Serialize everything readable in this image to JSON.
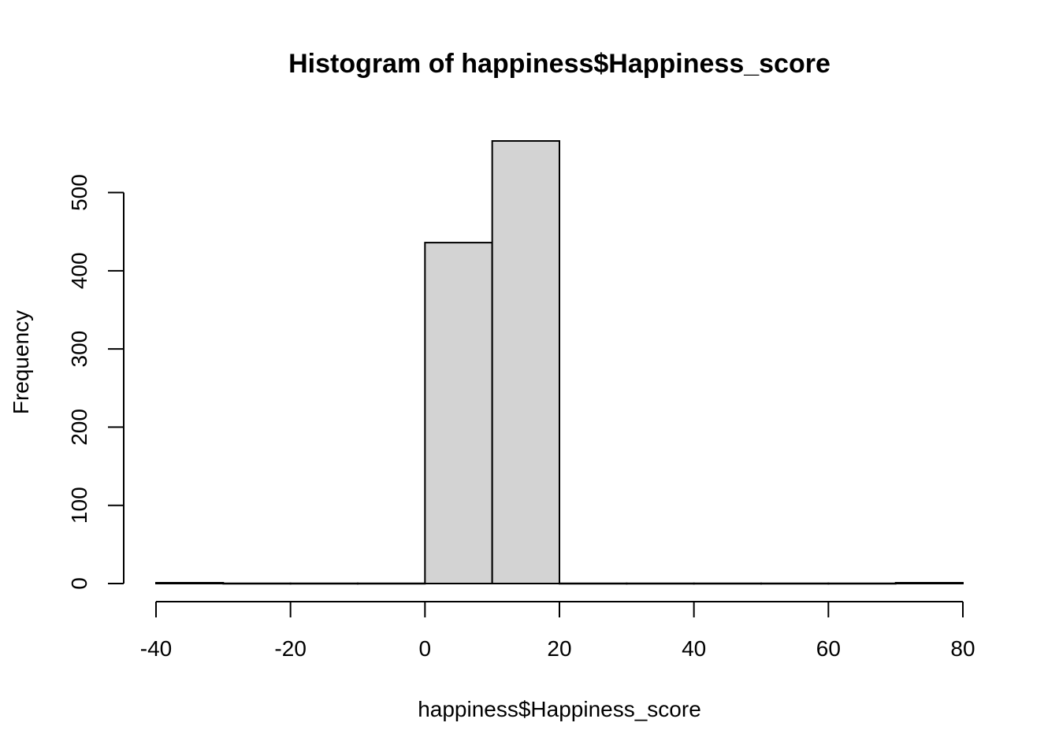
{
  "chart_data": {
    "type": "bar",
    "title": "Histogram of happiness$Happiness_score",
    "xlabel": "happiness$Happiness_score",
    "ylabel": "Frequency",
    "bins": [
      {
        "start": -40,
        "end": -30,
        "count": 1
      },
      {
        "start": -30,
        "end": -20,
        "count": 0
      },
      {
        "start": -20,
        "end": -10,
        "count": 0
      },
      {
        "start": -10,
        "end": 0,
        "count": 0
      },
      {
        "start": 0,
        "end": 10,
        "count": 436
      },
      {
        "start": 10,
        "end": 20,
        "count": 566
      },
      {
        "start": 20,
        "end": 30,
        "count": 0
      },
      {
        "start": 30,
        "end": 40,
        "count": 0
      },
      {
        "start": 40,
        "end": 50,
        "count": 0
      },
      {
        "start": 50,
        "end": 60,
        "count": 0
      },
      {
        "start": 60,
        "end": 70,
        "count": 0
      },
      {
        "start": 70,
        "end": 80,
        "count": 1
      }
    ],
    "xlim": [
      -40,
      80
    ],
    "ylim": [
      0,
      566
    ],
    "x_ticks": [
      -40,
      -20,
      0,
      20,
      40,
      60,
      80
    ],
    "y_ticks": [
      0,
      100,
      200,
      300,
      400,
      500
    ],
    "grid": false,
    "bar_color": "#d3d3d3",
    "edge_color": "#000000"
  }
}
